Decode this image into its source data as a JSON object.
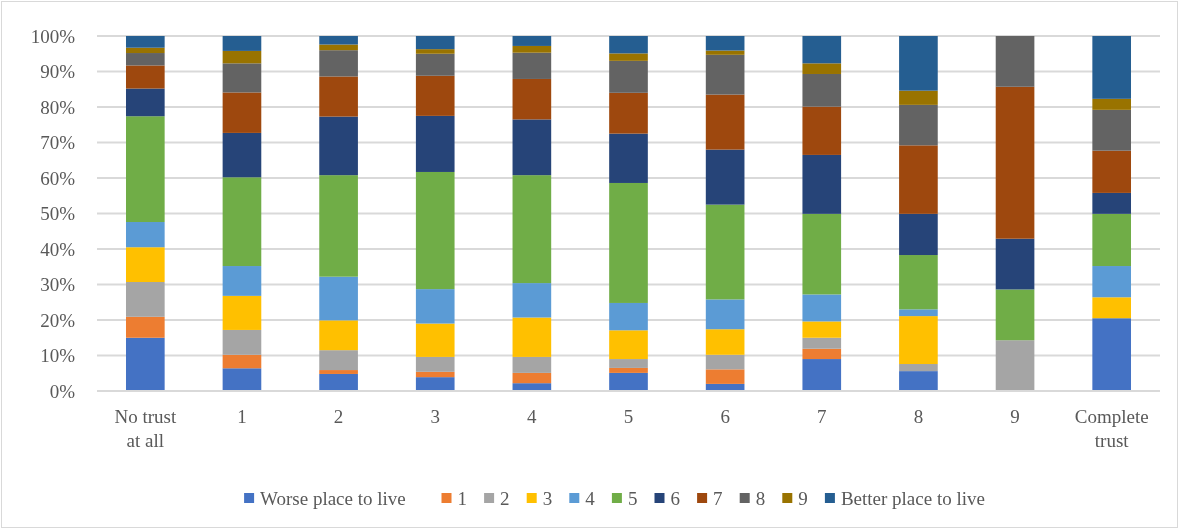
{
  "chart_data": {
    "type": "bar",
    "stacked": true,
    "categories": [
      "No trust at all",
      "1",
      "2",
      "3",
      "4",
      "5",
      "6",
      "7",
      "8",
      "9",
      "Complete trust"
    ],
    "ylim": [
      0,
      100
    ],
    "yticks": [
      {
        "value": 0,
        "label": "0%"
      },
      {
        "value": 10,
        "label": "10%"
      },
      {
        "value": 20,
        "label": "20%"
      },
      {
        "value": 30,
        "label": "30%"
      },
      {
        "value": 40,
        "label": "40%"
      },
      {
        "value": 50,
        "label": "50%"
      },
      {
        "value": 60,
        "label": "60%"
      },
      {
        "value": 70,
        "label": "70%"
      },
      {
        "value": 80,
        "label": "80%"
      },
      {
        "value": 90,
        "label": "90%"
      },
      {
        "value": 100,
        "label": "100%"
      }
    ],
    "grid": "y",
    "legend": "bottom",
    "series": [
      {
        "name": "Worse place to live",
        "color": "#4472c4",
        "values": [
          15.0,
          6.4,
          4.8,
          3.9,
          2.2,
          5.1,
          2.0,
          9.0,
          5.6,
          0,
          20.5
        ]
      },
      {
        "name": "1",
        "color": "#ed7d31",
        "values": [
          5.9,
          3.8,
          1.1,
          1.5,
          2.9,
          1.4,
          4.1,
          2.9,
          0,
          0,
          0
        ]
      },
      {
        "name": "2",
        "color": "#a5a5a5",
        "values": [
          9.8,
          7.0,
          5.6,
          4.2,
          4.5,
          2.5,
          4.1,
          3.1,
          2.0,
          14.3,
          0
        ]
      },
      {
        "name": "3",
        "color": "#ffc000",
        "values": [
          9.8,
          9.6,
          8.4,
          9.4,
          11.1,
          8.1,
          7.2,
          4.6,
          13.5,
          0,
          5.9
        ]
      },
      {
        "name": "4",
        "color": "#5b9bd5",
        "values": [
          7.1,
          8.4,
          12.3,
          9.7,
          9.7,
          7.7,
          8.4,
          7.6,
          1.9,
          0,
          8.8
        ]
      },
      {
        "name": "5",
        "color": "#70ad47",
        "values": [
          29.8,
          25.0,
          28.6,
          33.0,
          30.4,
          33.8,
          26.7,
          22.7,
          15.3,
          14.3,
          14.7
        ]
      },
      {
        "name": "6",
        "color": "#264478",
        "values": [
          7.8,
          12.5,
          16.5,
          15.8,
          15.7,
          13.9,
          15.5,
          16.6,
          11.6,
          14.3,
          5.9
        ]
      },
      {
        "name": "7",
        "color": "#9e480e",
        "values": [
          6.5,
          11.4,
          11.3,
          11.3,
          11.4,
          11.5,
          15.5,
          13.6,
          19.3,
          42.8,
          11.9
        ]
      },
      {
        "name": "8",
        "color": "#636363",
        "values": [
          3.5,
          8.2,
          7.4,
          6.2,
          7.4,
          9.0,
          11.2,
          9.2,
          11.4,
          14.3,
          11.5
        ]
      },
      {
        "name": "9",
        "color": "#997300",
        "values": [
          1.5,
          3.5,
          1.6,
          1.3,
          1.9,
          2.1,
          1.2,
          3.0,
          4.0,
          0,
          3.1
        ]
      },
      {
        "name": "Better place to live",
        "color": "#255e91",
        "values": [
          3.3,
          4.2,
          2.4,
          3.7,
          2.8,
          4.9,
          4.1,
          7.7,
          15.4,
          0,
          17.7
        ]
      }
    ]
  }
}
